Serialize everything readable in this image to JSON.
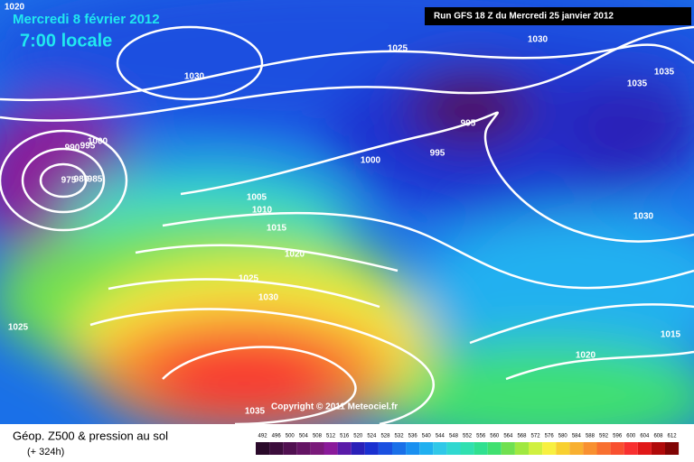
{
  "header": {
    "date": "Mercredi 8 février 2012",
    "time": "7:00 locale",
    "run": "Run GFS 18 Z du Mercredi 25 janvier 2012"
  },
  "isobar_labels": [
    "1020",
    "1030",
    "1025",
    "1030",
    "1035",
    "1035",
    "995",
    "995",
    "1000",
    "990",
    "995",
    "1000",
    "975",
    "980",
    "985",
    "1005",
    "1010",
    "1015",
    "1020",
    "1025",
    "1030",
    "1030",
    "1025",
    "1015",
    "1020",
    "1035"
  ],
  "copyright": "Copyright © 2011 Meteociel.fr",
  "footer": {
    "title": "Géop. Z500 & pression au sol",
    "subtitle": "(+ 324h)"
  },
  "legend": {
    "values": [
      492,
      496,
      500,
      504,
      508,
      512,
      516,
      520,
      524,
      528,
      532,
      536,
      540,
      544,
      548,
      552,
      556,
      560,
      564,
      568,
      572,
      576,
      580,
      584,
      588,
      592,
      596,
      600,
      604,
      608,
      612
    ],
    "colors": [
      "#2a0a2a",
      "#3c0d3c",
      "#501050",
      "#641464",
      "#7a1a7a",
      "#8a1a9a",
      "#5a1aa8",
      "#2a20b8",
      "#1a30d0",
      "#1a50e0",
      "#1a70e8",
      "#1a90f0",
      "#20b0f0",
      "#30c8e8",
      "#30d8d0",
      "#30e0b0",
      "#30e090",
      "#40e070",
      "#70e050",
      "#a0e840",
      "#d0f040",
      "#f8f040",
      "#f8d030",
      "#f8b030",
      "#f89030",
      "#f87030",
      "#f85030",
      "#f83030",
      "#e01818",
      "#b00a0a",
      "#800404"
    ]
  }
}
